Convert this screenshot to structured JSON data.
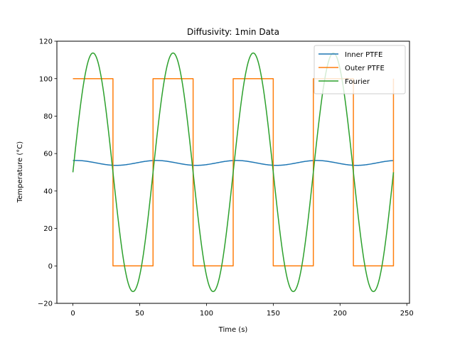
{
  "chart_data": {
    "type": "line",
    "title": "Diffusivity: 1min Data",
    "xlabel": "Time (s)",
    "ylabel": "Temperature (°C)",
    "xlim": [
      -12,
      252
    ],
    "ylim": [
      -20,
      120
    ],
    "xticks": [
      0,
      50,
      100,
      150,
      200,
      250
    ],
    "yticks": [
      -20,
      0,
      20,
      40,
      60,
      80,
      100,
      120
    ],
    "grid": false,
    "legend_position": "top-right",
    "series": [
      {
        "name": "Inner PTFE",
        "color": "#1f77b4",
        "kind": "sinusoid",
        "x_range": [
          0,
          240
        ],
        "offset": 55.0,
        "amplitude": 1.3,
        "period": 60,
        "phase_deg": 75
      },
      {
        "name": "Outer PTFE",
        "color": "#ff7f0e",
        "kind": "step",
        "x": [
          0,
          30,
          30,
          60,
          60,
          90,
          90,
          120,
          120,
          150,
          150,
          180,
          180,
          210,
          210,
          240,
          240
        ],
        "y": [
          100,
          100,
          0,
          0,
          100,
          100,
          0,
          0,
          100,
          100,
          0,
          0,
          100,
          100,
          0,
          0,
          100
        ]
      },
      {
        "name": "Fourier",
        "color": "#2ca02c",
        "kind": "sinusoid",
        "x_range": [
          0,
          240
        ],
        "offset": 50,
        "amplitude": 63.7,
        "period": 60,
        "phase_deg": 0
      }
    ]
  }
}
